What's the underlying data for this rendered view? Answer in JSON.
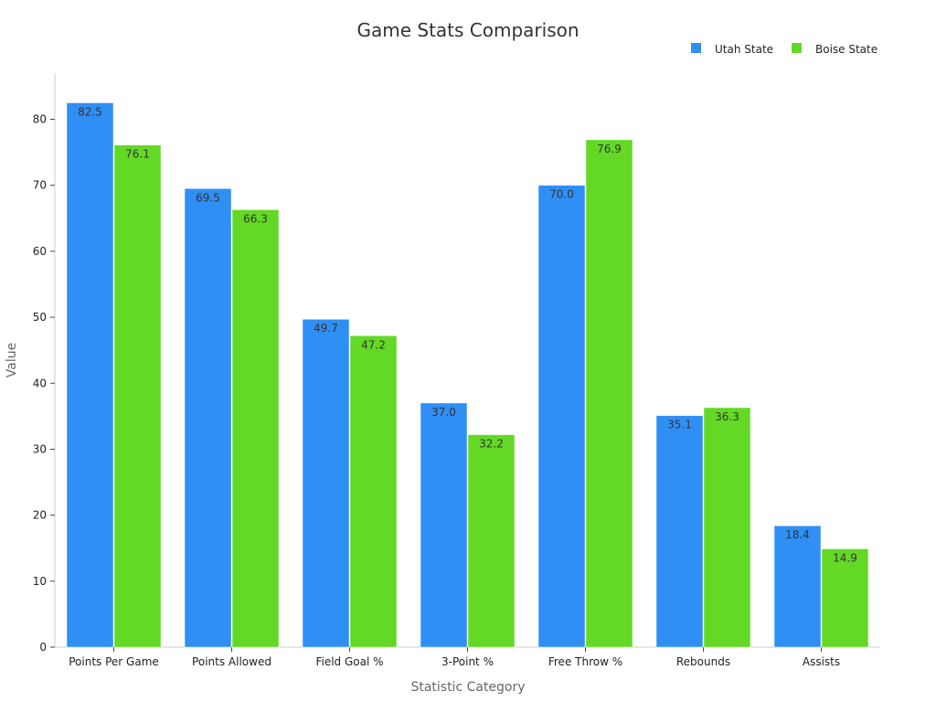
{
  "chart_data": {
    "type": "bar",
    "title": "Game Stats Comparison",
    "xlabel": "Statistic Category",
    "ylabel": "Value",
    "ylim": [
      0,
      87
    ],
    "yticks": [
      0,
      10,
      20,
      30,
      40,
      50,
      60,
      70,
      80
    ],
    "grid": false,
    "legend_position": "top-right",
    "categories": [
      "Points Per Game",
      "Points Allowed",
      "Field Goal %",
      "3-Point %",
      "Free Throw %",
      "Rebounds",
      "Assists"
    ],
    "series": [
      {
        "name": "Utah State",
        "color": "#2f8ff5",
        "values": [
          82.5,
          69.5,
          49.7,
          37.0,
          70.0,
          35.1,
          18.4
        ],
        "labels": [
          "82.5",
          "69.5",
          "49.7",
          "37.0",
          "70.0",
          "35.1",
          "18.4"
        ]
      },
      {
        "name": "Boise State",
        "color": "#63d926",
        "values": [
          76.1,
          66.3,
          47.2,
          32.2,
          76.9,
          36.3,
          14.9
        ],
        "labels": [
          "76.1",
          "66.3",
          "47.2",
          "32.2",
          "76.9",
          "36.3",
          "14.9"
        ]
      }
    ]
  }
}
